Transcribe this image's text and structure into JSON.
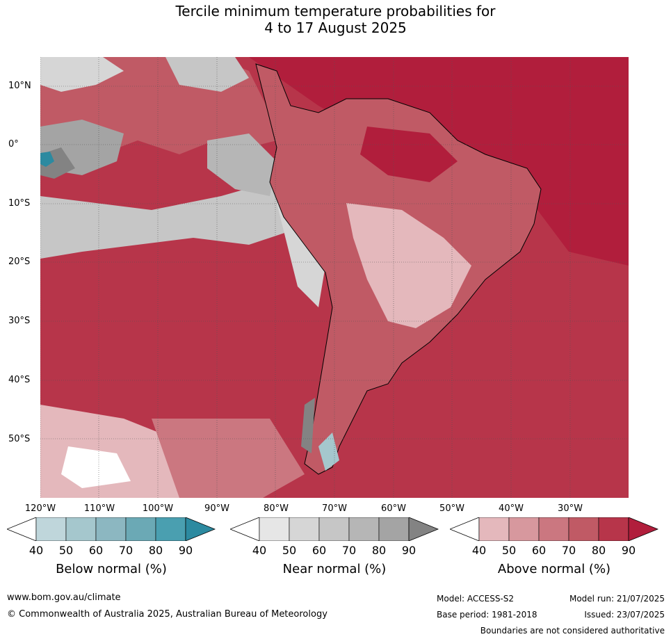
{
  "title": {
    "line1": "Tercile minimum temperature probabilities for",
    "line2": "4 to 17 August 2025"
  },
  "map": {
    "lat_labels": [
      "10°N",
      "0°",
      "10°S",
      "20°S",
      "30°S",
      "40°S",
      "50°S"
    ],
    "lon_labels": [
      "120°W",
      "110°W",
      "100°W",
      "90°W",
      "80°W",
      "70°W",
      "60°W",
      "50°W",
      "40°W",
      "30°W"
    ],
    "colors": {
      "above": [
        "#e4b8bc",
        "#d7989e",
        "#cb7780",
        "#c05a65",
        "#b7354a",
        "#b11e3c"
      ],
      "near": [
        "#e6e6e6",
        "#d6d6d6",
        "#c6c6c6",
        "#b6b6b6",
        "#a4a4a4",
        "#838383"
      ],
      "below": [
        "#bfd6db",
        "#a5c7cd",
        "#8cb7c1",
        "#6ba9b5",
        "#4a9fb0",
        "#2c8aa0"
      ]
    }
  },
  "colorbars": [
    {
      "label": "Below normal (%)",
      "ticks": [
        "40",
        "50",
        "60",
        "70",
        "80",
        "90"
      ],
      "colors": [
        "#bfd6db",
        "#a5c7cd",
        "#8cb7c1",
        "#6ba9b5",
        "#4a9fb0",
        "#2c8aa0"
      ]
    },
    {
      "label": "Near normal (%)",
      "ticks": [
        "40",
        "50",
        "60",
        "70",
        "80",
        "90"
      ],
      "colors": [
        "#e6e6e6",
        "#d6d6d6",
        "#c6c6c6",
        "#b6b6b6",
        "#a4a4a4",
        "#838383"
      ]
    },
    {
      "label": "Above normal (%)",
      "ticks": [
        "40",
        "50",
        "60",
        "70",
        "80",
        "90"
      ],
      "colors": [
        "#e4b8bc",
        "#d7989e",
        "#cb7780",
        "#c05a65",
        "#b7354a",
        "#b11e3c"
      ]
    }
  ],
  "footer": {
    "website": "www.bom.gov.au/climate",
    "copyright": "© Commonwealth of Australia 2025, Australian Bureau of Meteorology",
    "model": "Model: ACCESS-S2",
    "base_period": "Base period: 1981-2018",
    "model_run": "Model run: 21/07/2025",
    "issued": "Issued: 23/07/2025",
    "disclaimer": "Boundaries are not considered authoritative"
  }
}
